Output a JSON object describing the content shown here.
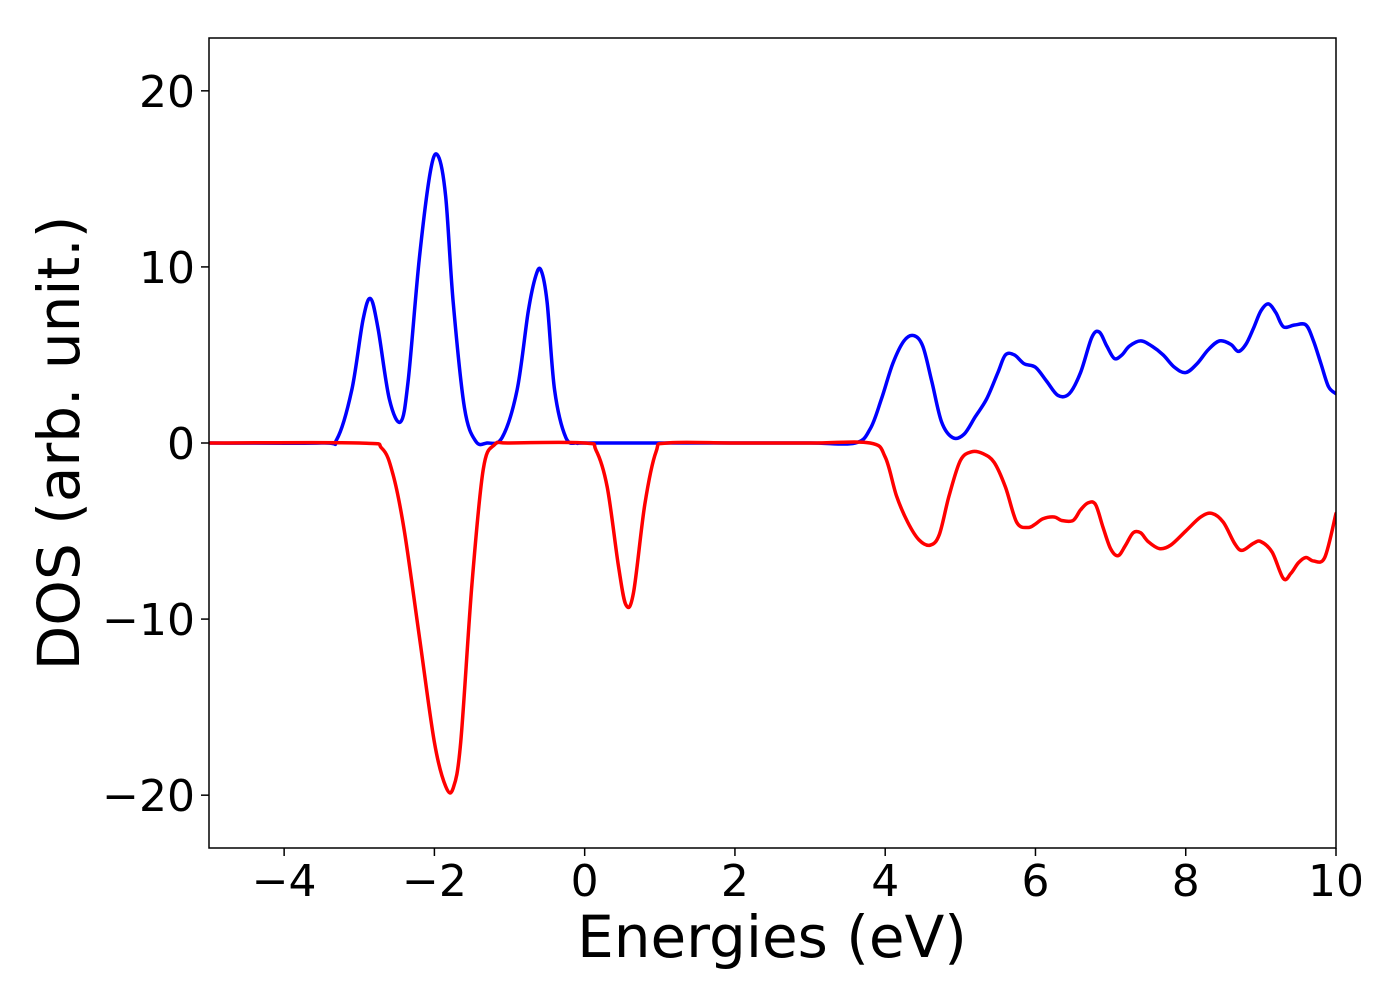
{
  "chart_data": {
    "type": "line",
    "title": "",
    "xlabel": "Energies (eV)",
    "ylabel": "DOS (arb. unit.)",
    "xlim": [
      -5,
      10
    ],
    "ylim": [
      -23.0,
      23.0
    ],
    "x_ticks": [
      -4,
      -2,
      0,
      2,
      4,
      6,
      8,
      10
    ],
    "x_tick_labels": [
      "−4",
      "−2",
      "0",
      "2",
      "4",
      "6",
      "8",
      "10"
    ],
    "y_ticks": [
      20,
      10,
      0,
      -10,
      -20
    ],
    "y_tick_labels": [
      "20",
      "10",
      "0",
      "−10",
      "−20"
    ],
    "grid": false,
    "legend": "none",
    "series": [
      {
        "color": "#0000ff",
        "x": [
          -5.0,
          -3.5,
          -3.3,
          -3.1,
          -2.95,
          -2.85,
          -2.75,
          -2.6,
          -2.45,
          -2.35,
          -2.2,
          -2.05,
          -1.95,
          -1.85,
          -1.75,
          -1.6,
          -1.45,
          -1.3,
          -1.1,
          -0.9,
          -0.75,
          -0.65,
          -0.58,
          -0.5,
          -0.4,
          -0.25,
          -0.1,
          0.0,
          1.0,
          2.0,
          3.0,
          3.6,
          3.8,
          3.95,
          4.1,
          4.25,
          4.38,
          4.5,
          4.62,
          4.75,
          4.9,
          5.05,
          5.2,
          5.35,
          5.5,
          5.6,
          5.72,
          5.85,
          6.0,
          6.15,
          6.3,
          6.45,
          6.6,
          6.75,
          6.85,
          6.95,
          7.05,
          7.15,
          7.25,
          7.4,
          7.55,
          7.7,
          7.85,
          8.0,
          8.15,
          8.3,
          8.45,
          8.6,
          8.7,
          8.8,
          8.9,
          9.0,
          9.1,
          9.2,
          9.3,
          9.45,
          9.6,
          9.7,
          9.8,
          9.9,
          10.0
        ],
        "values": [
          0.0,
          0.0,
          0.2,
          3.0,
          7.0,
          8.2,
          6.5,
          2.5,
          1.2,
          3.5,
          10.5,
          15.5,
          16.3,
          14.0,
          8.0,
          2.0,
          0.1,
          0.0,
          0.3,
          3.0,
          7.5,
          9.5,
          9.8,
          8.0,
          3.0,
          0.3,
          0.0,
          0.0,
          0.0,
          0.0,
          0.0,
          0.0,
          0.8,
          2.5,
          4.5,
          5.8,
          6.1,
          5.5,
          3.5,
          1.2,
          0.3,
          0.5,
          1.5,
          2.5,
          4.0,
          5.0,
          5.0,
          4.5,
          4.3,
          3.5,
          2.7,
          2.8,
          4.0,
          6.0,
          6.3,
          5.5,
          4.8,
          5.0,
          5.5,
          5.8,
          5.5,
          5.0,
          4.3,
          4.0,
          4.5,
          5.3,
          5.8,
          5.6,
          5.2,
          5.6,
          6.5,
          7.5,
          7.9,
          7.4,
          6.6,
          6.7,
          6.7,
          5.8,
          4.5,
          3.2,
          2.8
        ]
      },
      {
        "color": "#ff0000",
        "x": [
          -5.0,
          -3.0,
          -2.7,
          -2.55,
          -2.4,
          -2.2,
          -2.0,
          -1.85,
          -1.75,
          -1.65,
          -1.5,
          -1.35,
          -1.2,
          -1.0,
          0.0,
          0.15,
          0.3,
          0.45,
          0.55,
          0.65,
          0.8,
          0.95,
          1.1,
          2.0,
          3.0,
          3.8,
          4.0,
          4.15,
          4.3,
          4.45,
          4.6,
          4.72,
          4.85,
          5.0,
          5.15,
          5.3,
          5.45,
          5.6,
          5.75,
          5.9,
          6.0,
          6.1,
          6.25,
          6.35,
          6.5,
          6.6,
          6.7,
          6.8,
          6.9,
          7.0,
          7.1,
          7.2,
          7.3,
          7.4,
          7.5,
          7.65,
          7.8,
          8.0,
          8.2,
          8.35,
          8.5,
          8.65,
          8.75,
          8.9,
          9.0,
          9.15,
          9.3,
          9.4,
          9.5,
          9.6,
          9.7,
          9.85,
          10.0
        ],
        "values": [
          0.0,
          0.0,
          -0.3,
          -1.8,
          -5.0,
          -11.0,
          -17.0,
          -19.5,
          -19.6,
          -17.0,
          -8.0,
          -1.5,
          -0.1,
          0.0,
          0.0,
          -0.4,
          -2.5,
          -7.0,
          -9.2,
          -8.5,
          -3.5,
          -0.5,
          0.0,
          0.0,
          0.0,
          0.0,
          -0.8,
          -3.0,
          -4.5,
          -5.5,
          -5.8,
          -5.2,
          -3.0,
          -1.0,
          -0.5,
          -0.6,
          -1.1,
          -2.5,
          -4.5,
          -4.8,
          -4.6,
          -4.3,
          -4.2,
          -4.4,
          -4.4,
          -3.8,
          -3.4,
          -3.5,
          -4.8,
          -6.0,
          -6.4,
          -5.8,
          -5.1,
          -5.1,
          -5.6,
          -6.0,
          -5.8,
          -5.0,
          -4.2,
          -4.0,
          -4.5,
          -5.7,
          -6.1,
          -5.7,
          -5.6,
          -6.2,
          -7.7,
          -7.4,
          -6.8,
          -6.5,
          -6.7,
          -6.5,
          -4.0
        ]
      }
    ]
  }
}
